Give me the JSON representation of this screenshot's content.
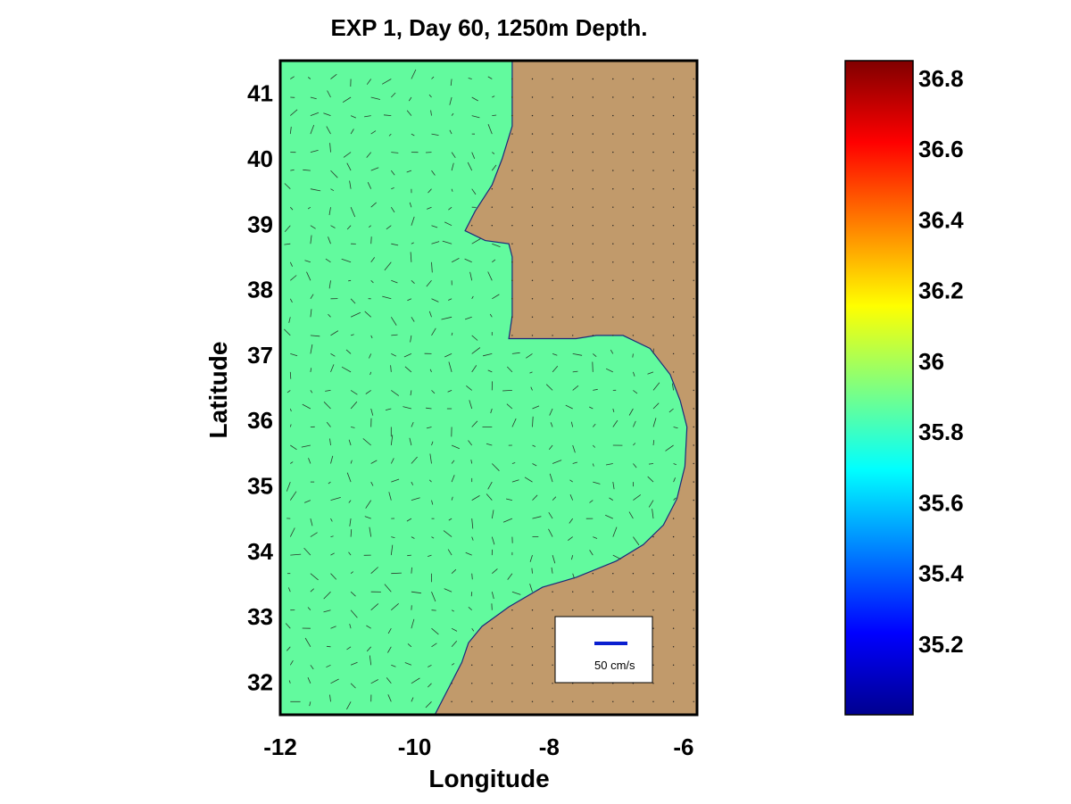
{
  "chart_data": {
    "type": "heatmap",
    "title": "EXP 1, Day 60, 1250m Depth.",
    "xlabel": "Longitude",
    "ylabel": "Latitude",
    "xlim": [
      -12,
      -5.8
    ],
    "ylim": [
      31.5,
      41.5
    ],
    "xticks": [
      "-12",
      "-10",
      "-8",
      "-6"
    ],
    "xtick_values": [
      -12,
      -10,
      -8,
      -6
    ],
    "yticks": [
      "32",
      "33",
      "34",
      "35",
      "36",
      "37",
      "38",
      "39",
      "40",
      "41"
    ],
    "ytick_values": [
      32,
      33,
      34,
      35,
      36,
      37,
      38,
      39,
      40,
      41
    ],
    "field_value": 35.85,
    "colorbar": {
      "min": 35.0,
      "max": 36.85,
      "ticks": [
        "35.2",
        "35.4",
        "35.6",
        "35.8",
        "36",
        "36.2",
        "36.4",
        "36.6",
        "36.8"
      ],
      "tick_values": [
        35.2,
        35.4,
        35.6,
        35.8,
        36.0,
        36.2,
        36.4,
        36.6,
        36.8
      ]
    },
    "coastline": [
      [
        -8.55,
        41.5
      ],
      [
        -8.55,
        40.5
      ],
      [
        -8.7,
        40.0
      ],
      [
        -8.85,
        39.6
      ],
      [
        -9.1,
        39.2
      ],
      [
        -9.25,
        38.9
      ],
      [
        -8.95,
        38.75
      ],
      [
        -8.6,
        38.7
      ],
      [
        -8.55,
        38.5
      ],
      [
        -8.55,
        37.6
      ],
      [
        -8.6,
        37.25
      ],
      [
        -7.6,
        37.25
      ],
      [
        -7.3,
        37.3
      ],
      [
        -6.9,
        37.3
      ],
      [
        -6.5,
        37.1
      ],
      [
        -6.2,
        36.7
      ],
      [
        -6.05,
        36.3
      ],
      [
        -5.95,
        35.9
      ],
      [
        -5.98,
        35.3
      ],
      [
        -6.1,
        34.8
      ],
      [
        -6.3,
        34.4
      ],
      [
        -6.6,
        34.1
      ],
      [
        -7.0,
        33.85
      ],
      [
        -7.6,
        33.6
      ],
      [
        -8.1,
        33.45
      ],
      [
        -8.6,
        33.15
      ],
      [
        -9.0,
        32.85
      ],
      [
        -9.2,
        32.6
      ],
      [
        -9.3,
        32.3
      ],
      [
        -9.45,
        32.0
      ],
      [
        -9.7,
        31.5
      ]
    ],
    "scale_arrow": {
      "label": "50 cm/s",
      "speed": 50
    },
    "colors": {
      "ocean": "#62fa9e",
      "land": "#c19a6b",
      "scale_arrow": "#0a1fd0"
    }
  }
}
